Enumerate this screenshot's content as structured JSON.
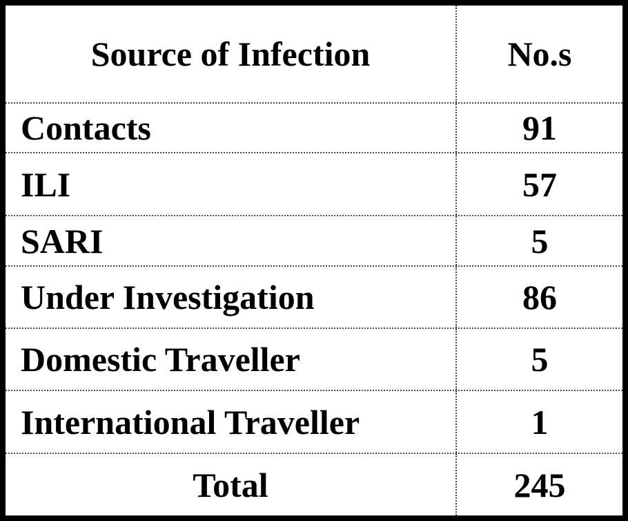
{
  "table": {
    "header": [
      "Source of Infection",
      "No.s"
    ],
    "rows": [
      [
        "Contacts",
        91
      ],
      [
        "ILI",
        57
      ],
      [
        "SARI",
        5
      ],
      [
        "Under Investigation",
        86
      ],
      [
        "Domestic Traveller",
        5
      ],
      [
        "International Traveller",
        1
      ]
    ],
    "total": [
      "Total",
      245
    ]
  }
}
